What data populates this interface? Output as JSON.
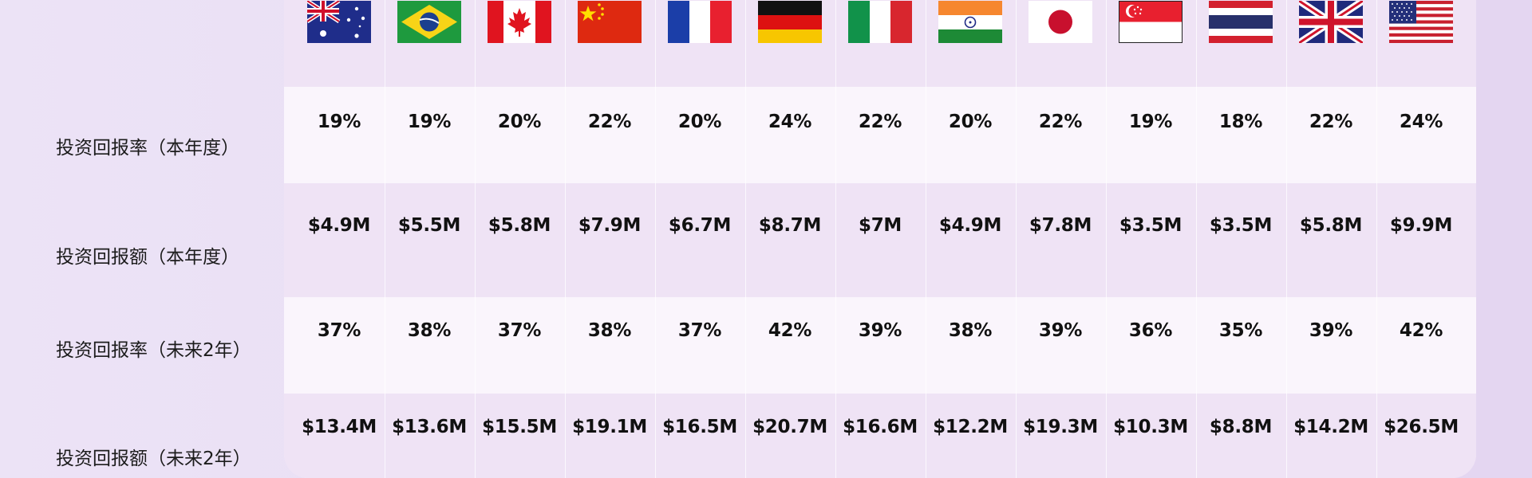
{
  "row_labels": [
    "投资回报率（本年度）",
    "投资回报额（本年度）",
    "投资回报率（未来2年）",
    "投资回报额（未来2年）"
  ],
  "countries": [
    {
      "flag": "australia-flag",
      "roi_year": "19%",
      "return_year": "$4.9M",
      "roi_2y": "37%",
      "return_2y": "$13.4M"
    },
    {
      "flag": "brazil-flag",
      "roi_year": "19%",
      "return_year": "$5.5M",
      "roi_2y": "38%",
      "return_2y": "$13.6M"
    },
    {
      "flag": "canada-flag",
      "roi_year": "20%",
      "return_year": "$5.8M",
      "roi_2y": "37%",
      "return_2y": "$15.5M"
    },
    {
      "flag": "china-flag",
      "roi_year": "22%",
      "return_year": "$7.9M",
      "roi_2y": "38%",
      "return_2y": "$19.1M"
    },
    {
      "flag": "france-flag",
      "roi_year": "20%",
      "return_year": "$6.7M",
      "roi_2y": "37%",
      "return_2y": "$16.5M"
    },
    {
      "flag": "germany-flag",
      "roi_year": "24%",
      "return_year": "$8.7M",
      "roi_2y": "42%",
      "return_2y": "$20.7M"
    },
    {
      "flag": "italy-flag",
      "roi_year": "22%",
      "return_year": "$7M",
      "roi_2y": "39%",
      "return_2y": "$16.6M"
    },
    {
      "flag": "india-flag",
      "roi_year": "20%",
      "return_year": "$4.9M",
      "roi_2y": "38%",
      "return_2y": "$12.2M"
    },
    {
      "flag": "japan-flag",
      "roi_year": "22%",
      "return_year": "$7.8M",
      "roi_2y": "39%",
      "return_2y": "$19.3M"
    },
    {
      "flag": "singapore-flag",
      "roi_year": "19%",
      "return_year": "$3.5M",
      "roi_2y": "36%",
      "return_2y": "$10.3M"
    },
    {
      "flag": "thailand-flag",
      "roi_year": "18%",
      "return_year": "$3.5M",
      "roi_2y": "35%",
      "return_2y": "$8.8M"
    },
    {
      "flag": "uk-flag",
      "roi_year": "22%",
      "return_year": "$5.8M",
      "roi_2y": "39%",
      "return_2y": "$14.2M"
    },
    {
      "flag": "usa-flag",
      "roi_year": "24%",
      "return_year": "$9.9M",
      "roi_2y": "42%",
      "return_2y": "$26.5M"
    }
  ]
}
